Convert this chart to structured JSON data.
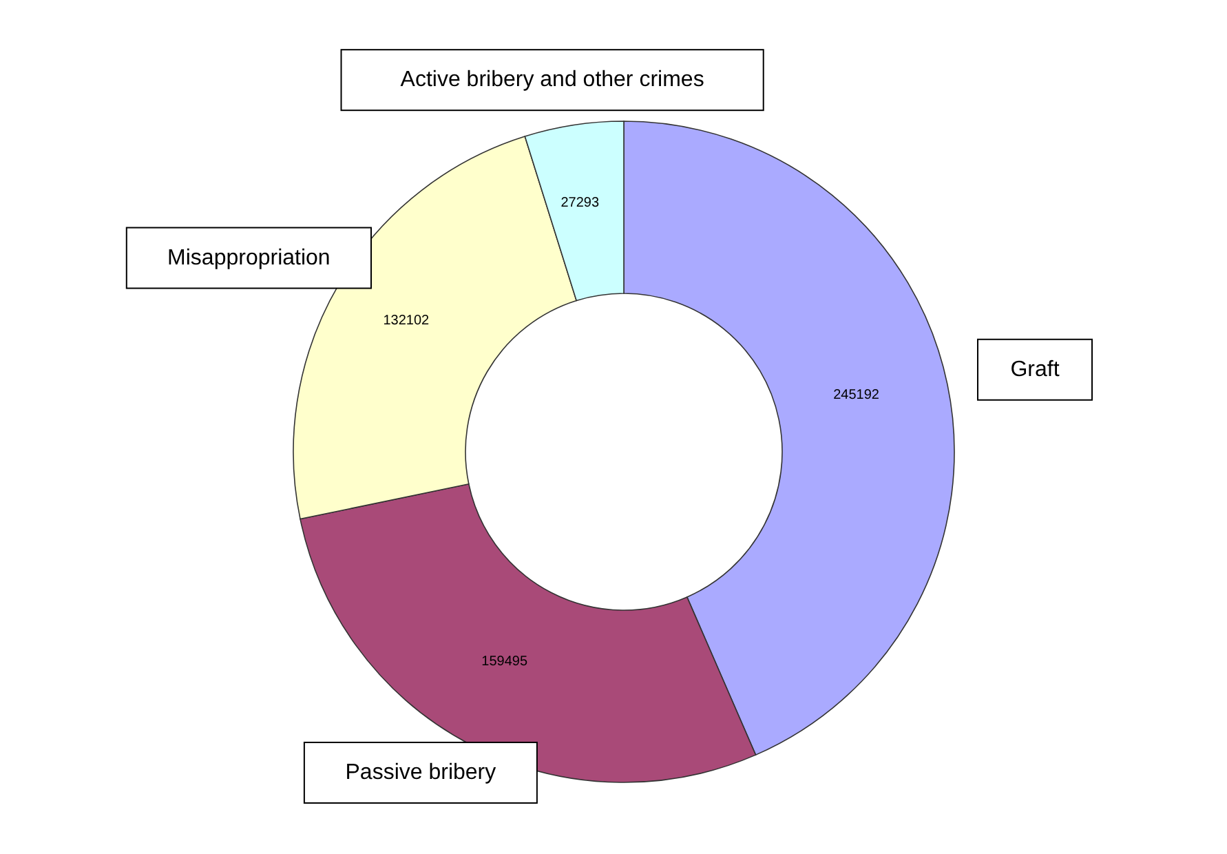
{
  "chart_data": {
    "type": "donut",
    "categories": [
      "Graft",
      "Passive bribery",
      "Misappropriation",
      "Active bribery and other crimes"
    ],
    "values": [
      245192,
      159495,
      132102,
      27293
    ],
    "colors": [
      "#aaaaff",
      "#a94a78",
      "#ffffcc",
      "#ccffff"
    ],
    "data_labels": true,
    "legend": false
  }
}
